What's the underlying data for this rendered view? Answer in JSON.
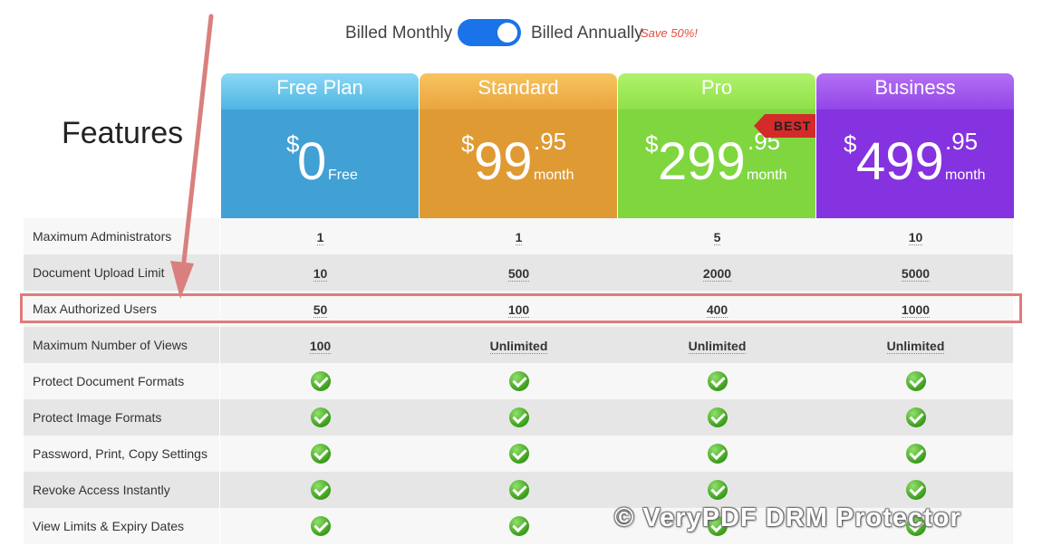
{
  "billing": {
    "monthly_label": "Billed Monthly",
    "annual_label": "Billed Annually",
    "save_label": "Save 50%!",
    "toggle_state": "annual"
  },
  "features_title": "Features",
  "plans": [
    {
      "name": "Free Plan",
      "currency": "$",
      "amount": "0",
      "decimals": "",
      "period": "Free"
    },
    {
      "name": "Standard",
      "currency": "$",
      "amount": "99",
      "decimals": ".95",
      "period": "month"
    },
    {
      "name": "Pro",
      "currency": "$",
      "amount": "299",
      "decimals": ".95",
      "period": "month",
      "badge": "BEST"
    },
    {
      "name": "Business",
      "currency": "$",
      "amount": "499",
      "decimals": ".95",
      "period": "month"
    }
  ],
  "rows": [
    {
      "feature": "Maximum Administrators",
      "values": [
        "1",
        "1",
        "5",
        "10"
      ]
    },
    {
      "feature": "Document Upload Limit",
      "values": [
        "10",
        "500",
        "2000",
        "5000"
      ]
    },
    {
      "feature": "Max Authorized Users",
      "values": [
        "50",
        "100",
        "400",
        "1000"
      ],
      "highlighted": true
    },
    {
      "feature": "Maximum Number of Views",
      "values": [
        "100",
        "Unlimited",
        "Unlimited",
        "Unlimited"
      ]
    },
    {
      "feature": "Protect Document Formats",
      "check": true
    },
    {
      "feature": "Protect Image Formats",
      "check": true
    },
    {
      "feature": "Password, Print, Copy Settings",
      "check": true
    },
    {
      "feature": "Revoke Access Instantly",
      "check": true
    },
    {
      "feature": "View Limits & Expiry Dates",
      "check": true
    }
  ],
  "watermark": "© VeryPDF DRM Protector",
  "colors": {
    "free": "#41a0d4",
    "standard": "#df9a33",
    "pro": "#7fd63f",
    "business": "#8532e0",
    "highlight": "#e07b7b"
  }
}
